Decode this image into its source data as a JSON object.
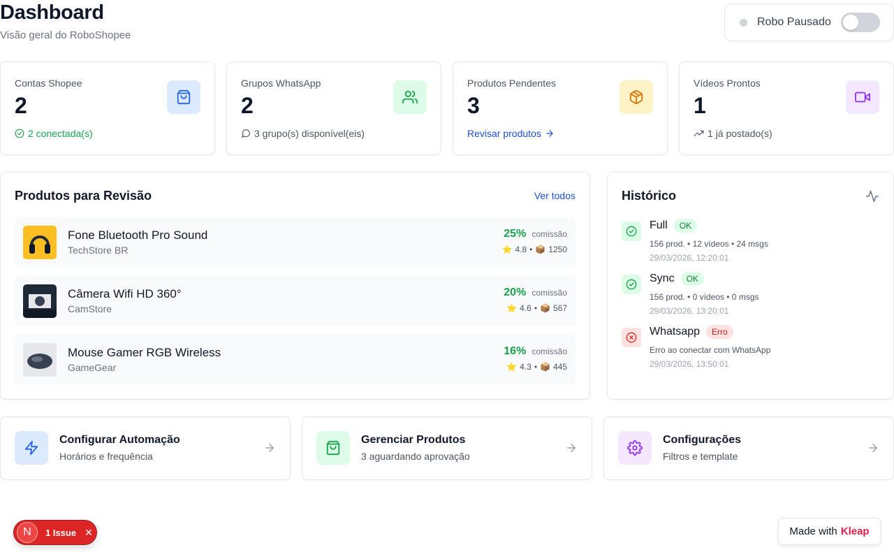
{
  "header": {
    "title": "Dashboard",
    "subtitle": "Visão geral do RoboShopee"
  },
  "robot": {
    "status_label": "Robo Pausado",
    "enabled": false
  },
  "stats": [
    {
      "label": "Contas Shopee",
      "value": "2",
      "foot": "2 conectada(s)",
      "icon": "shopping-bag-icon",
      "accent": "#2563eb"
    },
    {
      "label": "Grupos WhatsApp",
      "value": "2",
      "foot": "3 grupo(s) disponível(eis)",
      "icon": "users-icon",
      "accent": "#16a34a"
    },
    {
      "label": "Produtos Pendentes",
      "value": "3",
      "foot": "Revisar produtos",
      "icon": "package-icon",
      "accent": "#d97706"
    },
    {
      "label": "Vídeos Prontos",
      "value": "1",
      "foot": "1 já postado(s)",
      "icon": "video-icon",
      "accent": "#9333ea"
    }
  ],
  "products_panel": {
    "title": "Produtos para Revisão",
    "view_all": "Ver todos",
    "commission_label": "comissão",
    "items": [
      {
        "name": "Fone Bluetooth Pro Sound",
        "store": "TechStore BR",
        "commission": "25%",
        "rating": "4.8",
        "sales": "1250"
      },
      {
        "name": "Câmera Wifi HD 360°",
        "store": "CamStore",
        "commission": "20%",
        "rating": "4.6",
        "sales": "567"
      },
      {
        "name": "Mouse Gamer RGB Wireless",
        "store": "GameGear",
        "commission": "16%",
        "rating": "4.3",
        "sales": "445"
      }
    ]
  },
  "history": {
    "title": "Histórico",
    "items": [
      {
        "title": "Full",
        "badge": "OK",
        "status": "ok",
        "detail": "156 prod. • 12 vídeos • 24 msgs",
        "time": "29/03/2026, 12:20:01"
      },
      {
        "title": "Sync",
        "badge": "OK",
        "status": "ok",
        "detail": "156 prod. • 0 vídeos • 0 msgs",
        "time": "29/03/2026, 13:20:01"
      },
      {
        "title": "Whatsapp",
        "badge": "Erro",
        "status": "error",
        "detail": "Erro ao conectar com WhatsApp",
        "time": "29/03/2026, 13:50:01"
      }
    ]
  },
  "quick_actions": [
    {
      "title": "Configurar Automação",
      "subtitle": "Horários e frequência",
      "icon": "lightning-icon"
    },
    {
      "title": "Gerenciar Produtos",
      "subtitle": "3 aguardando aprovação",
      "icon": "shopping-bag-icon"
    },
    {
      "title": "Configurações",
      "subtitle": "Filtros e template",
      "icon": "gear-icon"
    }
  ],
  "issue_badge": {
    "avatar": "N",
    "label": "1 Issue",
    "close": "✕"
  },
  "made_with": {
    "prefix": "Made with",
    "brand": "Kleap"
  }
}
